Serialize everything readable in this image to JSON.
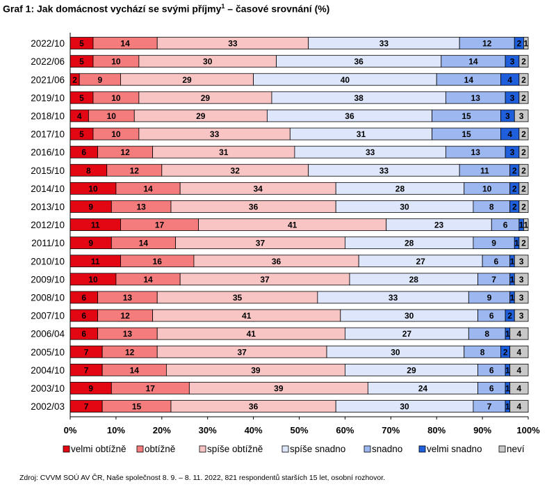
{
  "title": "Graf 1: Jak domácnost vychází se svými příjmy",
  "title_footnote_mark": "1",
  "title_suffix": " – časové srovnání (%)",
  "source": "Zdroj: CVVM SOÚ AV ČR, Naše společnost 8. 9. – 8. 11. 2022, 821  respondentů starších 15 let, osobní rozhovor.",
  "colors": [
    "#e30613",
    "#f47c7c",
    "#f9c4c4",
    "#dde6fb",
    "#9db8f0",
    "#1f5fdc",
    "#c8c8c8"
  ],
  "chart_data": {
    "type": "bar",
    "orientation": "horizontal",
    "stacked": true,
    "categories": [
      "2022/10",
      "2022/06",
      "2021/06",
      "2019/10",
      "2018/10",
      "2017/10",
      "2016/10",
      "2015/10",
      "2014/10",
      "2013/10",
      "2012/10",
      "2011/10",
      "2010/10",
      "2009/10",
      "2008/10",
      "2007/10",
      "2006/04",
      "2005/10",
      "2004/10",
      "2003/10",
      "2002/03"
    ],
    "xlim": [
      0,
      100
    ],
    "xticks": [
      "0%",
      "10%",
      "20%",
      "30%",
      "40%",
      "50%",
      "60%",
      "70%",
      "80%",
      "90%",
      "100%"
    ],
    "grid": false,
    "legend_position": "bottom",
    "series": [
      {
        "name": "velmi obtížně",
        "values": [
          5,
          5,
          2,
          5,
          4,
          5,
          6,
          8,
          10,
          9,
          11,
          9,
          11,
          10,
          6,
          6,
          6,
          7,
          7,
          9,
          7
        ]
      },
      {
        "name": "obtížně",
        "values": [
          14,
          10,
          9,
          10,
          10,
          10,
          12,
          12,
          14,
          13,
          17,
          14,
          16,
          14,
          13,
          12,
          13,
          12,
          14,
          17,
          15
        ]
      },
      {
        "name": "spíše obtížně",
        "values": [
          33,
          30,
          29,
          29,
          29,
          33,
          31,
          32,
          34,
          36,
          41,
          37,
          36,
          37,
          35,
          41,
          41,
          37,
          39,
          39,
          36
        ]
      },
      {
        "name": "spíše snadno",
        "values": [
          33,
          36,
          40,
          38,
          36,
          31,
          33,
          33,
          28,
          30,
          23,
          28,
          27,
          28,
          33,
          30,
          27,
          30,
          29,
          24,
          30
        ]
      },
      {
        "name": "snadno",
        "values": [
          12,
          14,
          14,
          13,
          15,
          15,
          13,
          11,
          10,
          8,
          6,
          9,
          6,
          7,
          9,
          6,
          8,
          8,
          6,
          6,
          7
        ]
      },
      {
        "name": "velmi snadno",
        "values": [
          2,
          3,
          4,
          3,
          3,
          4,
          3,
          2,
          2,
          2,
          1,
          1,
          1,
          1,
          1,
          2,
          1,
          2,
          1,
          1,
          1
        ]
      },
      {
        "name": "neví",
        "values": [
          1,
          2,
          2,
          2,
          3,
          2,
          2,
          2,
          2,
          2,
          1,
          2,
          3,
          3,
          3,
          3,
          4,
          4,
          4,
          4,
          4
        ]
      }
    ]
  }
}
